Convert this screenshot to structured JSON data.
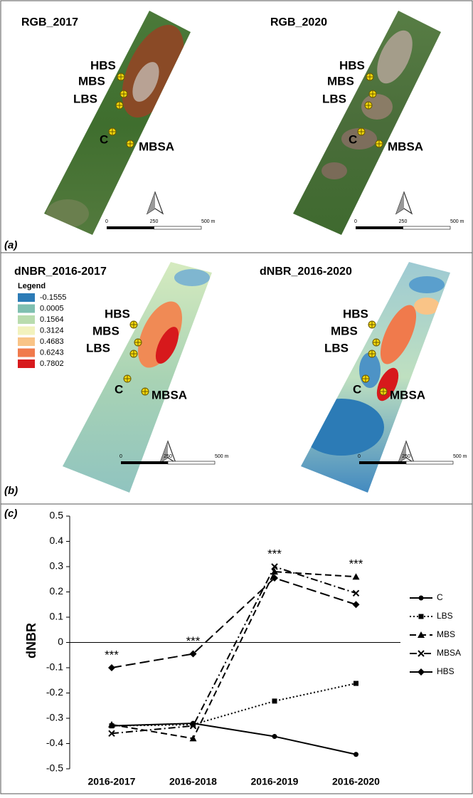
{
  "panels": [
    {
      "label": "(a)",
      "maps": [
        {
          "title": "RGB_2017"
        },
        {
          "title": "RGB_2020"
        }
      ]
    },
    {
      "label": "(b)",
      "maps": [
        {
          "title": "dNBR_2016-2017"
        },
        {
          "title": "dNBR_2016-2020"
        }
      ],
      "legend": {
        "title": "Legend",
        "items": [
          {
            "label": "-0.1555",
            "color": "#2c7bb6"
          },
          {
            "label": "0.0005",
            "color": "#7fbfb0"
          },
          {
            "label": "0.1564",
            "color": "#b9dcae"
          },
          {
            "label": "0.3124",
            "color": "#f2f2bd"
          },
          {
            "label": "0.4683",
            "color": "#f9c487"
          },
          {
            "label": "0.6243",
            "color": "#f07a4c"
          },
          {
            "label": "0.7802",
            "color": "#d7191c"
          }
        ]
      }
    }
  ],
  "sites": [
    "HBS",
    "MBS",
    "LBS",
    "C",
    "MBSA"
  ],
  "scale_bar": [
    "0",
    "250",
    "500 m"
  ],
  "chart_data": {
    "type": "line",
    "panel_label": "(c)",
    "y_label": "dNBR",
    "categories": [
      "2016-2017",
      "2016-2018",
      "2016-2019",
      "2016-2020"
    ],
    "series": [
      {
        "name": "C",
        "color": "#000000",
        "line_style": "solid",
        "marker": "circle",
        "values": [
          -0.33,
          -0.32,
          -0.372,
          -0.443
        ]
      },
      {
        "name": "LBS",
        "color": "#000000",
        "line_style": "dotted",
        "marker": "square",
        "values": [
          -0.33,
          -0.325,
          -0.232,
          -0.162
        ]
      },
      {
        "name": "MBS",
        "color": "#000000",
        "line_style": "dashed",
        "marker": "triangle",
        "values": [
          -0.325,
          -0.38,
          0.28,
          0.26
        ]
      },
      {
        "name": "MBSA",
        "color": "#000000",
        "line_style": "dashdot",
        "marker": "x",
        "values": [
          -0.36,
          -0.33,
          0.3,
          0.195
        ]
      },
      {
        "name": "HBS",
        "color": "#000000",
        "line_style": "longdash",
        "marker": "diamond",
        "values": [
          -0.1,
          -0.045,
          0.255,
          0.15
        ]
      }
    ],
    "annotations": [
      "***",
      "***",
      "***",
      "***"
    ],
    "ylim": [
      -0.5,
      0.5
    ],
    "yticks": [
      0.5,
      0.4,
      0.3,
      0.2,
      0.1,
      0,
      -0.1,
      -0.2,
      -0.3,
      -0.4,
      -0.5
    ],
    "zero_line": true,
    "legend_position": "right"
  }
}
